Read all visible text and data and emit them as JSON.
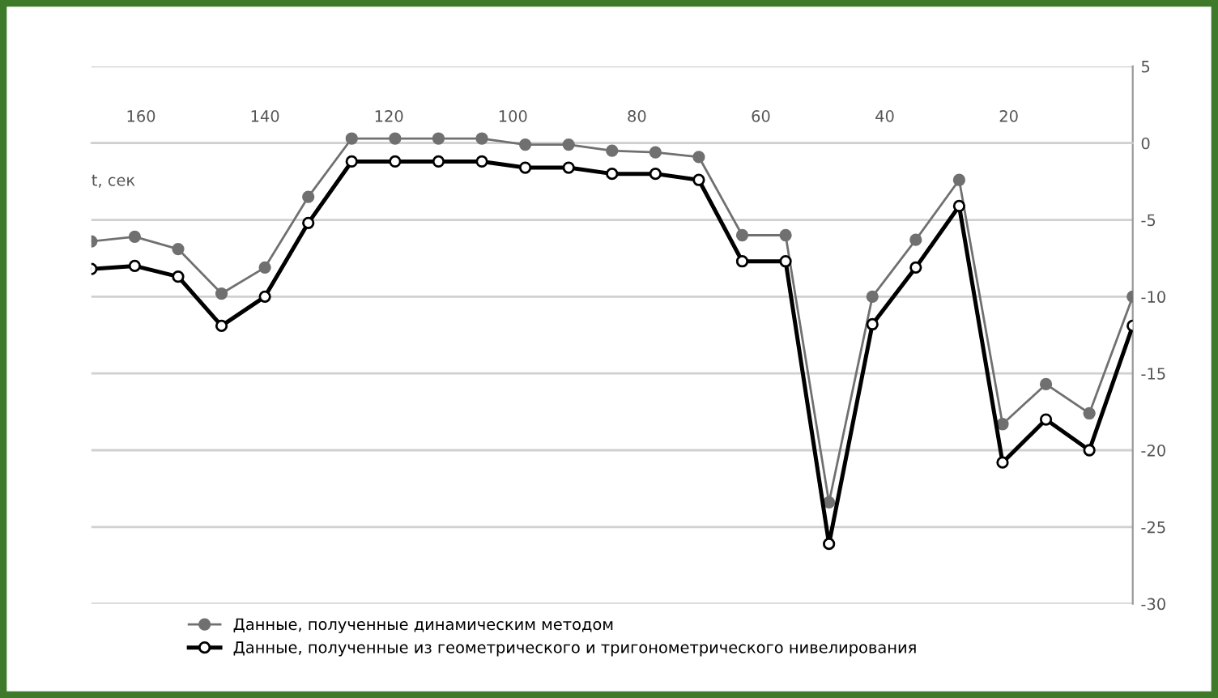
{
  "chart_data": {
    "type": "line",
    "xlabel": "t, сек",
    "x": [
      168,
      161,
      154,
      147,
      140,
      133,
      126,
      119,
      112,
      105,
      98,
      91,
      84,
      77,
      70,
      63,
      56,
      49,
      42,
      35,
      28,
      21,
      14,
      7,
      0
    ],
    "series": [
      {
        "name": "Данные, полученные динамическим методом",
        "color": "#707070",
        "values": [
          -6.4,
          -6.1,
          -6.9,
          -9.8,
          -8.1,
          -3.5,
          0.3,
          0.3,
          0.3,
          0.3,
          -0.1,
          -0.1,
          -0.5,
          -0.6,
          -0.9,
          -6.0,
          -6.0,
          -23.4,
          -10.0,
          -6.3,
          -2.4,
          -18.3,
          -15.7,
          -17.6,
          -10.0
        ]
      },
      {
        "name": "Данные, полученные из геометрического и тригонометрического нивелирования",
        "color": "#000000",
        "values": [
          -8.2,
          -8.0,
          -8.7,
          -11.9,
          -10.0,
          -5.2,
          -1.2,
          -1.2,
          -1.2,
          -1.2,
          -1.6,
          -1.6,
          -2.0,
          -2.0,
          -2.4,
          -7.7,
          -7.7,
          -26.1,
          -11.8,
          -8.1,
          -4.1,
          -20.8,
          -18.0,
          -20.0,
          -11.9
        ]
      }
    ],
    "xlim": [
      168,
      0
    ],
    "xticks": [
      20,
      40,
      60,
      80,
      100,
      120,
      140,
      160
    ],
    "ylim": [
      -30,
      5
    ],
    "yticks": [
      5,
      0,
      -5,
      -10,
      -15,
      -20,
      -25,
      -30
    ],
    "grid": "y",
    "legend": "bottom left",
    "marker": "circle",
    "line_style": "solid"
  }
}
